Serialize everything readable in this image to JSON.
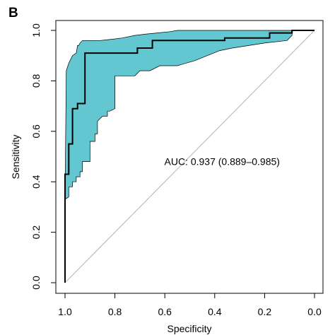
{
  "panel_label": "B",
  "chart_data": {
    "type": "line",
    "title": "",
    "xlabel": "Specificity",
    "ylabel": "Sensitivity",
    "x_reversed": true,
    "xlim": [
      1.0,
      0.0
    ],
    "ylim": [
      0.0,
      1.0
    ],
    "xticks": [
      1.0,
      0.8,
      0.6,
      0.4,
      0.2,
      0.0
    ],
    "xtick_labels": [
      "1.0",
      "0.8",
      "0.6",
      "0.4",
      "0.2",
      "0.0"
    ],
    "yticks": [
      0.0,
      0.2,
      0.4,
      0.6,
      0.8,
      1.0
    ],
    "ytick_labels": [
      "0.0",
      "0.2",
      "0.4",
      "0.6",
      "0.8",
      "1.0"
    ],
    "grid": false,
    "colors": {
      "band": "#63c7d1",
      "curve": "#000000",
      "diagonal": "#b3b3b3"
    },
    "annotation": {
      "text": "AUC: 0.937 (0.889–0.985)",
      "x": 0.5,
      "y": 0.48
    },
    "diagonal": {
      "x": [
        1.0,
        0.0
      ],
      "y": [
        0.0,
        1.0
      ]
    },
    "series": [
      {
        "role": "roc_curve",
        "x": [
          1.0,
          1.0,
          0.985,
          0.985,
          0.97,
          0.97,
          0.95,
          0.95,
          0.92,
          0.92,
          0.71,
          0.71,
          0.65,
          0.65,
          0.36,
          0.36,
          0.18,
          0.18,
          0.09,
          0.09,
          0.0
        ],
        "y": [
          0.0,
          0.43,
          0.43,
          0.55,
          0.55,
          0.69,
          0.69,
          0.71,
          0.71,
          0.91,
          0.91,
          0.93,
          0.93,
          0.96,
          0.96,
          0.97,
          0.97,
          0.99,
          0.99,
          1.0,
          1.0
        ]
      },
      {
        "role": "ci_upper",
        "x": [
          1.0,
          0.995,
          0.985,
          0.975,
          0.97,
          0.955,
          0.95,
          0.945,
          0.94,
          0.93,
          0.92,
          0.9,
          0.86,
          0.84,
          0.81,
          0.77,
          0.72,
          0.68,
          0.63,
          0.58,
          0.55,
          0.09,
          0.09
        ],
        "y": [
          0.33,
          0.84,
          0.87,
          0.89,
          0.9,
          0.91,
          0.94,
          0.94,
          0.95,
          0.96,
          0.96,
          0.96,
          0.96,
          0.962,
          0.965,
          0.97,
          0.98,
          0.985,
          0.99,
          0.995,
          1.0,
          1.0,
          1.0
        ]
      },
      {
        "role": "ci_lower",
        "x": [
          0.09,
          0.11,
          0.2,
          0.33,
          0.38,
          0.48,
          0.55,
          0.62,
          0.66,
          0.7,
          0.72,
          0.75,
          0.8,
          0.8,
          0.82,
          0.83,
          0.83,
          0.85,
          0.87,
          0.87,
          0.88,
          0.88,
          0.9,
          0.9,
          0.93,
          0.93,
          0.94,
          0.94,
          0.955,
          0.955,
          0.97,
          0.97,
          0.985,
          0.985,
          1.0
        ],
        "y": [
          0.98,
          0.96,
          0.95,
          0.93,
          0.92,
          0.88,
          0.86,
          0.86,
          0.84,
          0.84,
          0.82,
          0.82,
          0.82,
          0.69,
          0.68,
          0.68,
          0.66,
          0.66,
          0.64,
          0.59,
          0.59,
          0.56,
          0.56,
          0.48,
          0.48,
          0.44,
          0.44,
          0.42,
          0.42,
          0.4,
          0.4,
          0.38,
          0.38,
          0.34,
          0.33
        ]
      }
    ]
  }
}
